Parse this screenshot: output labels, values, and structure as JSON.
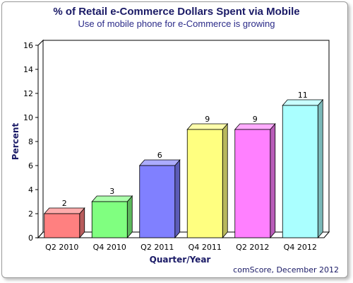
{
  "chart_data": {
    "type": "bar",
    "title": "% of Retail e-Commerce Dollars Spent via Mobile",
    "subtitle": "Use of mobile phone for e-Commerce is growing",
    "xlabel": "Quarter/Year",
    "ylabel": "Percent",
    "categories": [
      "Q2 2010",
      "Q4 2010",
      "Q2 2011",
      "Q4 2011",
      "Q2 2012",
      "Q4 2012"
    ],
    "values": [
      2,
      3,
      6,
      9,
      9,
      11
    ],
    "value_labels": [
      "2",
      "3",
      "6",
      "9",
      "9",
      "11"
    ],
    "ylim": [
      0,
      16
    ],
    "yticks": [
      0,
      2,
      4,
      6,
      8,
      10,
      12,
      14,
      16
    ],
    "ytick_labels": [
      "0",
      "2",
      "4",
      "6",
      "8",
      "10",
      "12",
      "14",
      "16"
    ],
    "grid": false,
    "legend": "none",
    "bar_colors": [
      "#ff8080",
      "#80ff80",
      "#8080ff",
      "#ffff80",
      "#ff80ff",
      "#aaffff"
    ],
    "source": "comScore, December 2012"
  }
}
